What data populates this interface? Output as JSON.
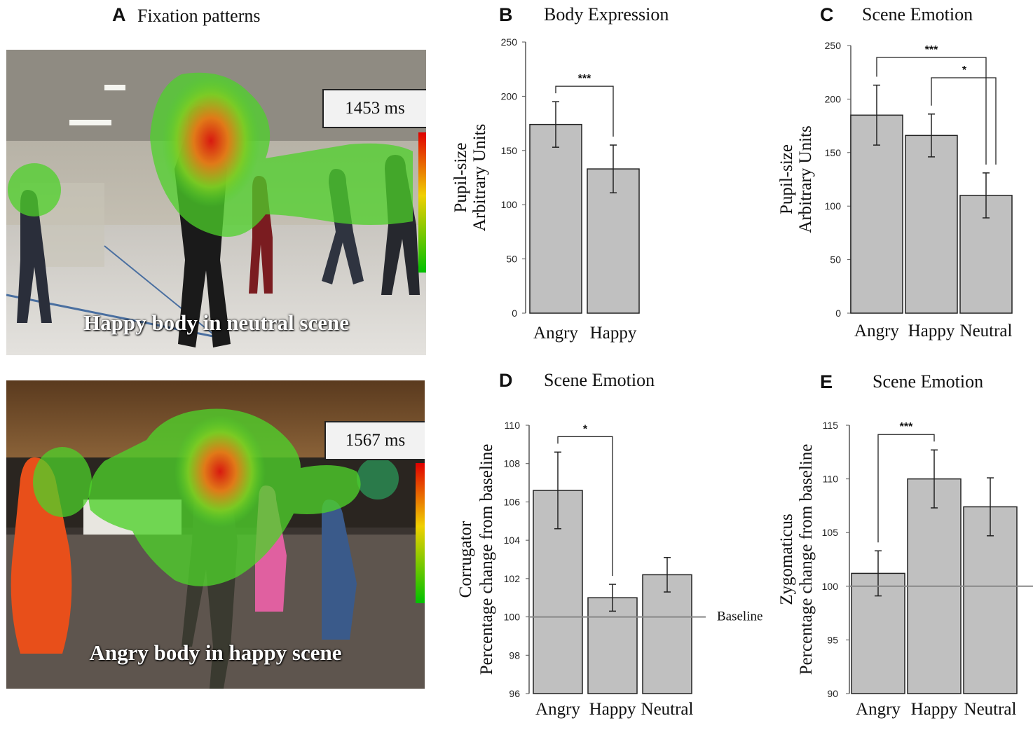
{
  "panel_a": {
    "letter": "A",
    "title": "Fixation patterns",
    "image_top": {
      "timer": "1453 ms",
      "caption": "Happy body in neutral scene"
    },
    "image_bottom": {
      "timer": "1567 ms",
      "caption": "Angry body in happy scene"
    }
  },
  "colors": {
    "bar_fill": "#c0c0c0",
    "bar_stroke": "#222222",
    "baseline": "#888888",
    "heat_green": "#4ed12a",
    "heat_red": "#d81a10"
  },
  "chart_data": [
    {
      "id": "B",
      "type": "bar",
      "letter": "B",
      "title": "Body Expression",
      "categories": [
        "Angry",
        "Happy"
      ],
      "values": [
        174,
        133
      ],
      "errors": [
        21,
        22
      ],
      "ylabel_lines": [
        "Pupil-size",
        "Arbitrary Units"
      ],
      "ylim": [
        0,
        250
      ],
      "yticks": [
        0,
        50,
        100,
        150,
        200,
        250
      ],
      "significance": [
        {
          "from": 0,
          "to": 1,
          "label": "***"
        }
      ]
    },
    {
      "id": "C",
      "type": "bar",
      "letter": "C",
      "title": "Scene Emotion",
      "categories": [
        "Angry",
        "Happy",
        "Neutral"
      ],
      "values": [
        185,
        166,
        110
      ],
      "errors": [
        28,
        20,
        21
      ],
      "ylabel_lines": [
        "Pupil-size",
        "Arbitrary Units"
      ],
      "ylim": [
        0,
        250
      ],
      "yticks": [
        0,
        50,
        100,
        150,
        200,
        250
      ],
      "significance": [
        {
          "from": 0,
          "to": 2,
          "label": "***"
        },
        {
          "from": 1,
          "to": 2,
          "label": "*"
        }
      ]
    },
    {
      "id": "D",
      "type": "bar",
      "letter": "D",
      "title": "Scene Emotion",
      "categories": [
        "Angry",
        "Happy",
        "Neutral"
      ],
      "values": [
        106.6,
        101.0,
        102.2
      ],
      "errors": [
        2.0,
        0.7,
        0.9
      ],
      "ylabel_lines": [
        "Corrugator",
        "Percentage change from baseline"
      ],
      "ylim": [
        96,
        110
      ],
      "yticks": [
        96,
        98,
        100,
        102,
        104,
        106,
        108,
        110
      ],
      "baseline": 100,
      "baseline_label": "Baseline",
      "significance": [
        {
          "from": 0,
          "to": 1,
          "label": "*"
        }
      ]
    },
    {
      "id": "E",
      "type": "bar",
      "letter": "E",
      "title": "Scene Emotion",
      "categories": [
        "Angry",
        "Happy",
        "Neutral"
      ],
      "values": [
        101.2,
        110.0,
        107.4
      ],
      "errors": [
        2.1,
        2.7,
        2.7
      ],
      "ylabel_lines": [
        "Zygomaticus",
        "Percentage change from baseline"
      ],
      "ylim": [
        90,
        115
      ],
      "yticks": [
        90,
        95,
        100,
        105,
        110,
        115
      ],
      "baseline": 100,
      "significance": [
        {
          "from": 0,
          "to": 1,
          "label": "***"
        }
      ]
    }
  ]
}
